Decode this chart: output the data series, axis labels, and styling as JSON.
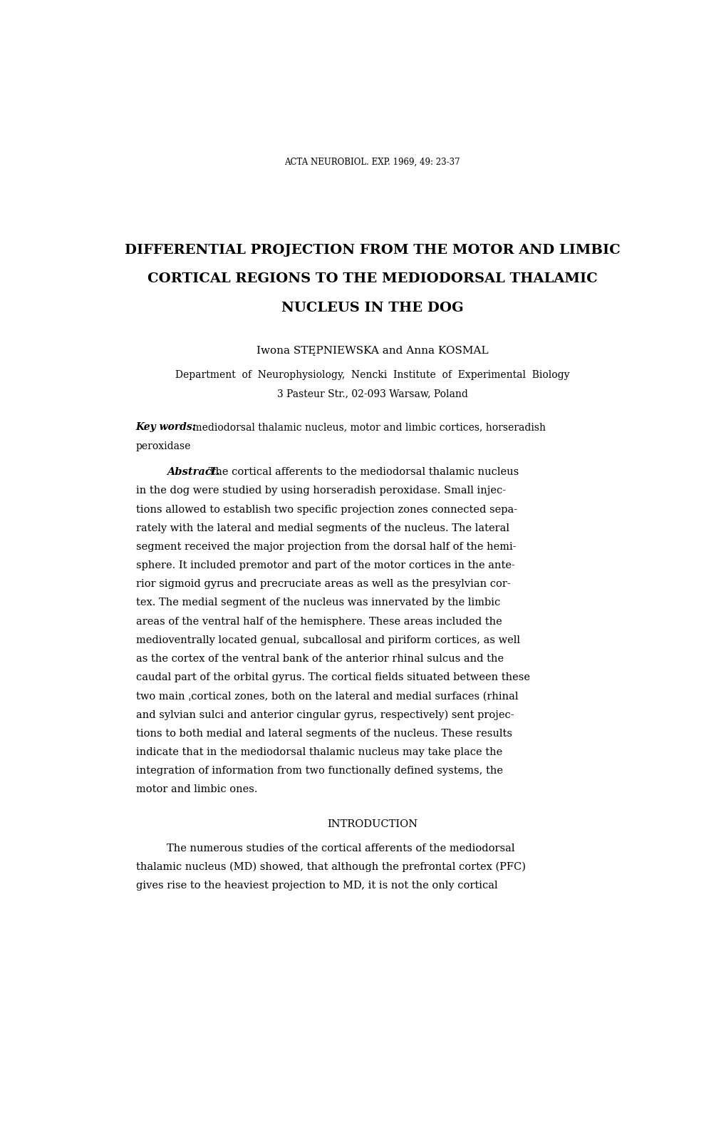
{
  "bg_color": "#ffffff",
  "header": "ACTA NEUROBIOL. EXP. 1969, 49: 23-37",
  "title_line1": "DIFFERENTIAL PROJECTION FROM THE MOTOR AND LIMBIC",
  "title_line2": "CORTICAL REGIONS TO THE MEDIODORSAL THALAMIC",
  "title_line3": "NUCLEUS IN THE DOG",
  "author": "Iwona STĘPNIEWSKA and Anna KOSMAL",
  "affiliation1": "Department  of  Neurophysiology,  Nencki  Institute  of  Experimental  Biology",
  "affiliation2": "3 Pasteur Str., 02-093 Warsaw, Poland",
  "keywords_label": "Key words:",
  "keywords_text": " mediodorsal thalamic nucleus, motor and limbic cortices, horseradish",
  "keywords_text2": "peroxidase",
  "abstract_label": "Abstract.",
  "abstract_body": " The cortical afferents to the mediodorsal thalamic nucleus\nin the dog were studied by using horseradish peroxidase. Small injec-\ntions allowed to establish two specific projection zones connected sepa-\nrately with the lateral and medial segments of the nucleus. The lateral\nsegment received the major projection from the dorsal half of the hemi-\nsphere. It included premotor and part of the motor cortices in the ante-\nrior sigmoid gyrus and precruciate areas as well as the presylvian cor-\ntex. The medial segment of the nucleus was innervated by the limbic\nareas of the ventral half of the hemisphere. These areas included the\nmedioventrally located genual, subcallosal and piriform cortices, as well\nas the cortex of the ventral bank of the anterior rhinal sulcus and the\ncaudal part of the orbital gyrus. The cortical fields situated between these\ntwo main ˌcortical zones, both on the lateral and medial surfaces (rhinal\nand sylvian sulci and anterior cingular gyrus, respectively) sent projec-\ntions to both medial and lateral segments of the nucleus. These results\nindicate that in the mediodorsal thalamic nucleus may take place the\nintegration of information from two functionally defined systems, the\nmotor and limbic ones.",
  "intro_heading": "INTRODUCTION",
  "intro_text": "The numerous studies of the cortical afferents of the mediodorsal\nthalamic nucleus (MD) showed, that although the prefrontal cortex (PFC)\ngives rise to the heaviest projection to MD, it is not the only cortical"
}
